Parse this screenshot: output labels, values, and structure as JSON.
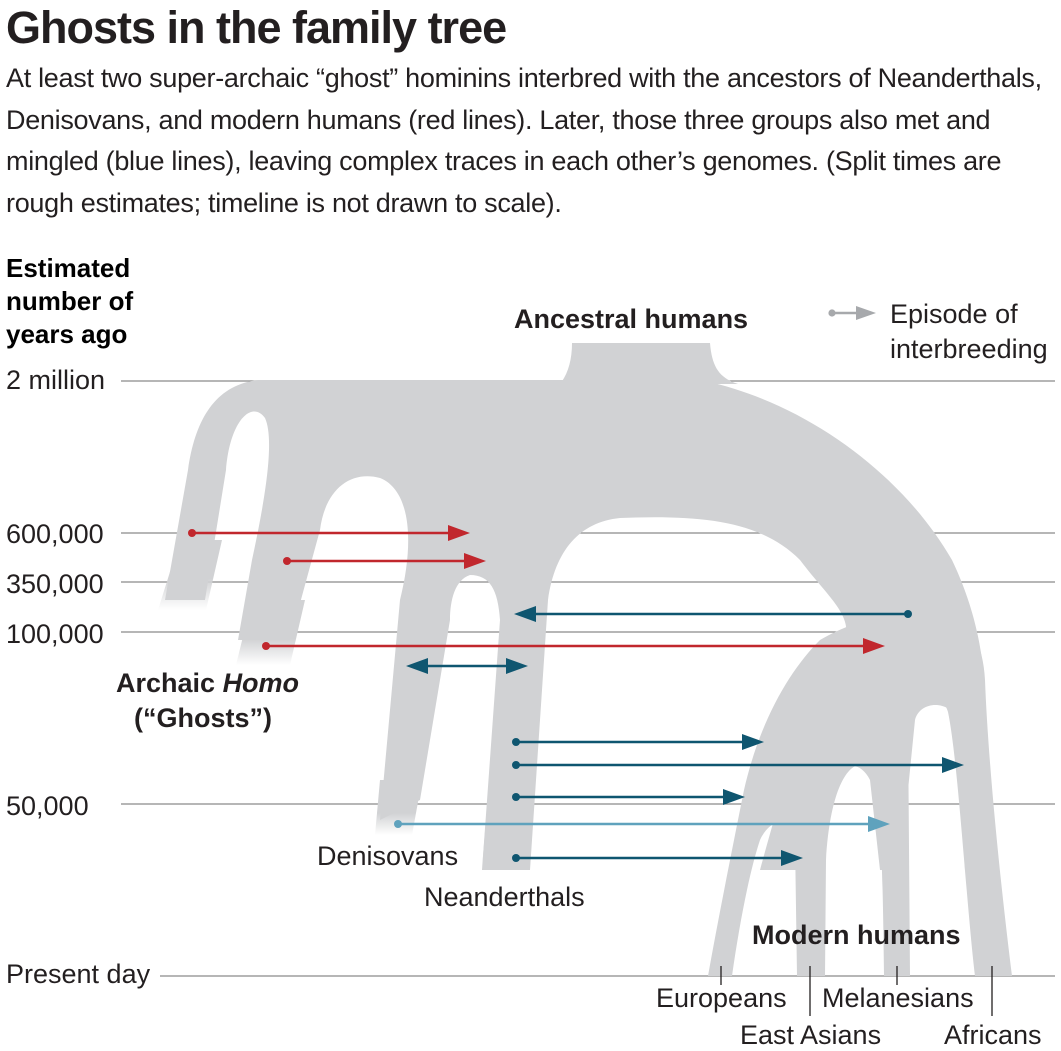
{
  "title": "Ghosts in the family tree",
  "subtitle": "At least two super-archaic “ghost” hominins interbred with the ancestors of Neanderthals, Denisovans, and modern humans (red lines). Later, those three groups also met and mingled (blue lines), leaving complex traces in each other’s genomes. (Split times are rough estimates; timeline is not drawn to scale).",
  "axis": {
    "heading": [
      "Estimated",
      "number of",
      "years ago"
    ],
    "ticks": [
      "2 million",
      "600,000",
      "350,000",
      "100,000",
      "50,000",
      "Present day"
    ]
  },
  "legend": {
    "line1": "Episode of",
    "line2": "interbreeding"
  },
  "labels": {
    "ancestral": "Ancestral humans",
    "archaic_1": "Archaic ",
    "archaic_homo": "Homo",
    "archaic_2": "(“Ghosts”)",
    "denisovans": "Denisovans",
    "neanderthals": "Neanderthals",
    "modern_humans": "Modern humans",
    "europeans": "Europeans",
    "east_asians": "East Asians",
    "melanesians": "Melanesians",
    "africans": "Africans"
  },
  "colors": {
    "tree": "#d1d2d4",
    "red": "#c1272d",
    "blue": "#0f5670",
    "light_blue": "#5fa2bd",
    "legend_gray": "#a7a9ac",
    "grid": "#8a8a8a"
  }
}
